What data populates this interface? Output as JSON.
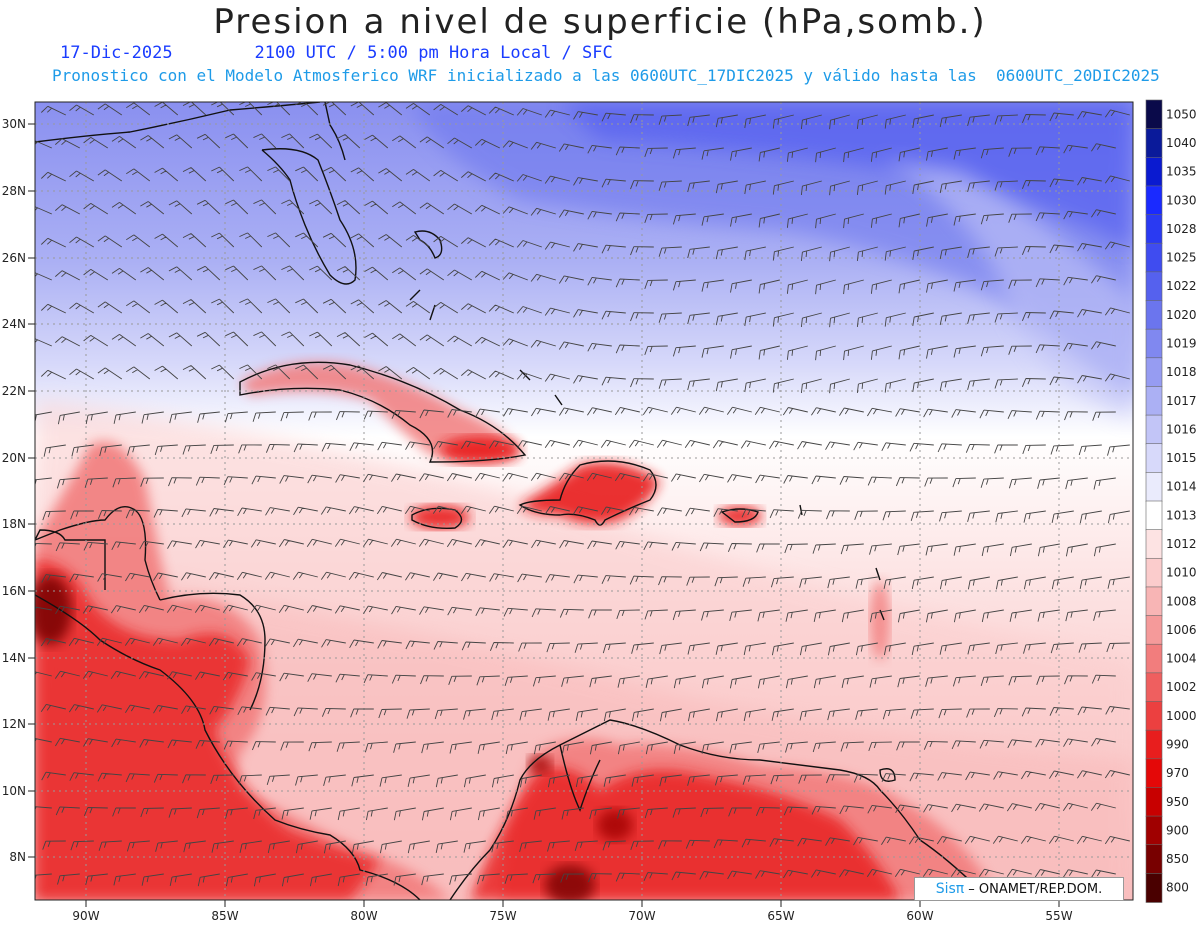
{
  "header": {
    "title": "Presion a nivel de superficie (hPa,somb.)",
    "date": "17-Dic-2025",
    "time_info": "2100 UTC / 5:00 pm Hora Local / SFC",
    "model_info": "Pronostico con el Modelo Atmosferico WRF inicializado a las 0600UTC_17DIC2025 y válido hasta las  0600UTC_20DIC2025"
  },
  "axes": {
    "lat_labels": [
      "30N",
      "28N",
      "26N",
      "24N",
      "22N",
      "20N",
      "18N",
      "16N",
      "14N",
      "12N",
      "10N",
      "8N"
    ],
    "lon_labels": [
      "90W",
      "85W",
      "80W",
      "75W",
      "70W",
      "65W",
      "60W",
      "55W"
    ]
  },
  "colorbar": {
    "levels": [
      "1050",
      "1040",
      "1035",
      "1030",
      "1028",
      "1025",
      "1022",
      "1020",
      "1019",
      "1018",
      "1017",
      "1016",
      "1015",
      "1014",
      "1013",
      "1012",
      "1010",
      "1008",
      "1006",
      "1004",
      "1002",
      "1000",
      "990",
      "970",
      "950",
      "900",
      "850",
      "800"
    ],
    "colors": [
      "#0a0a4a",
      "#0a1a9a",
      "#0a1ad0",
      "#1a2aff",
      "#2a3af2",
      "#3f4cf0",
      "#5561ee",
      "#6b75ee",
      "#8088f0",
      "#969cf2",
      "#abb0f4",
      "#c2c5f7",
      "#d7d9fa",
      "#eaebfc",
      "#ffffff",
      "#fde3e3",
      "#fbcccc",
      "#f8b5b5",
      "#f59a9a",
      "#f27d7d",
      "#ef5f5f",
      "#ec4040",
      "#e81e1e",
      "#e40808",
      "#c80000",
      "#a00000",
      "#780000",
      "#4a0000"
    ]
  },
  "credit": {
    "logo": "Sisπ",
    "text": "– ONAMET/REP.DOM."
  }
}
